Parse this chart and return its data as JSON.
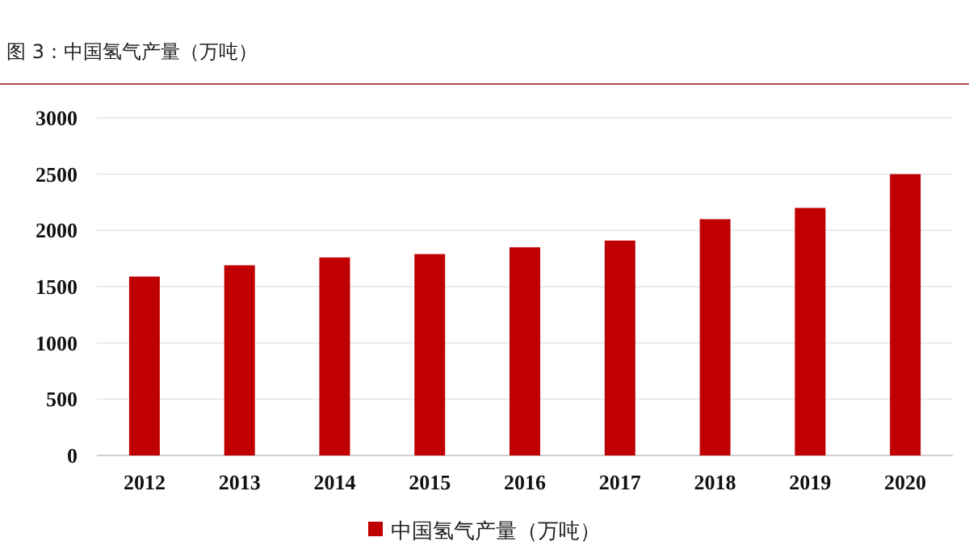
{
  "chart_data": {
    "type": "bar",
    "title": "图 3：中国氢气产量（万吨）",
    "categories": [
      "2012",
      "2013",
      "2014",
      "2015",
      "2016",
      "2017",
      "2018",
      "2019",
      "2020"
    ],
    "series": [
      {
        "name": "中国氢气产量（万吨）",
        "color": "#c00000",
        "values": [
          1590,
          1690,
          1760,
          1790,
          1850,
          1910,
          2100,
          2200,
          2500
        ]
      }
    ],
    "ylim": [
      0,
      3000
    ],
    "yticks": [
      0,
      500,
      1000,
      1500,
      2000,
      2500,
      3000
    ],
    "grid": "y",
    "legend": "bottom"
  }
}
